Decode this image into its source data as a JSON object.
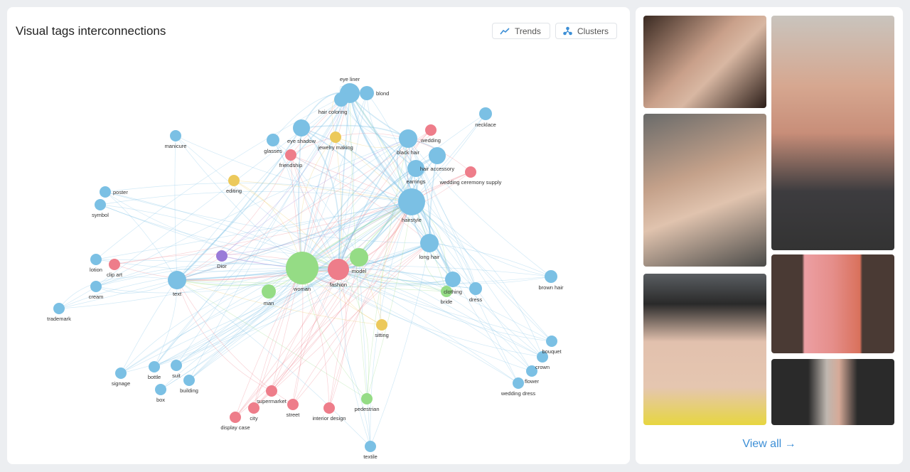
{
  "panel": {
    "title": "Visual tags interconnections"
  },
  "buttons": {
    "trends": "Trends",
    "clusters": "Clusters"
  },
  "colors": {
    "blue": "#7bc0e4",
    "red": "#ee7d8a",
    "green": "#95dc85",
    "yellow": "#ecc95b",
    "purple": "#9a7bd8",
    "link": "#3d8fd6"
  },
  "nodes": [
    {
      "label": "blond",
      "cluster": "blue"
    },
    {
      "label": "eye liner",
      "cluster": "blue"
    },
    {
      "label": "hair coloring",
      "cluster": "blue"
    },
    {
      "label": "necklace",
      "cluster": "blue"
    },
    {
      "label": "manicure",
      "cluster": "blue"
    },
    {
      "label": "glasses",
      "cluster": "blue"
    },
    {
      "label": "eye shadow",
      "cluster": "blue"
    },
    {
      "label": "jewelry making",
      "cluster": "yellow"
    },
    {
      "label": "black hair",
      "cluster": "blue"
    },
    {
      "label": "wedding",
      "cluster": "red"
    },
    {
      "label": "hair accessory",
      "cluster": "blue"
    },
    {
      "label": "friendship",
      "cluster": "red"
    },
    {
      "label": "earrings",
      "cluster": "blue"
    },
    {
      "label": "wedding ceremony supply",
      "cluster": "red"
    },
    {
      "label": "editing",
      "cluster": "yellow"
    },
    {
      "label": "hairstyle",
      "cluster": "blue"
    },
    {
      "label": "poster",
      "cluster": "blue"
    },
    {
      "label": "symbol",
      "cluster": "blue"
    },
    {
      "label": "Dior",
      "cluster": "purple"
    },
    {
      "label": "long hair",
      "cluster": "blue"
    },
    {
      "label": "lotion",
      "cluster": "blue"
    },
    {
      "label": "clip art",
      "cluster": "red"
    },
    {
      "label": "text",
      "cluster": "blue"
    },
    {
      "label": "woman",
      "cluster": "green"
    },
    {
      "label": "fashion",
      "cluster": "red"
    },
    {
      "label": "model",
      "cluster": "green"
    },
    {
      "label": "man",
      "cluster": "green"
    },
    {
      "label": "clothing",
      "cluster": "blue"
    },
    {
      "label": "bride",
      "cluster": "green"
    },
    {
      "label": "dress",
      "cluster": "blue"
    },
    {
      "label": "brown hair",
      "cluster": "blue"
    },
    {
      "label": "cream",
      "cluster": "blue"
    },
    {
      "label": "trademark",
      "cluster": "blue"
    },
    {
      "label": "sitting",
      "cluster": "yellow"
    },
    {
      "label": "bouquet",
      "cluster": "blue"
    },
    {
      "label": "crown",
      "cluster": "blue"
    },
    {
      "label": "flower",
      "cluster": "blue"
    },
    {
      "label": "wedding dress",
      "cluster": "blue"
    },
    {
      "label": "signage",
      "cluster": "blue"
    },
    {
      "label": "bottle",
      "cluster": "blue"
    },
    {
      "label": "suit",
      "cluster": "blue"
    },
    {
      "label": "building",
      "cluster": "blue"
    },
    {
      "label": "box",
      "cluster": "blue"
    },
    {
      "label": "supermarket",
      "cluster": "red"
    },
    {
      "label": "pedestrian",
      "cluster": "green"
    },
    {
      "label": "street",
      "cluster": "red"
    },
    {
      "label": "city",
      "cluster": "red"
    },
    {
      "label": "interior design",
      "cluster": "red"
    },
    {
      "label": "display case",
      "cluster": "red"
    },
    {
      "label": "textile",
      "cluster": "blue"
    }
  ],
  "gallery": {
    "view_all": "View all →"
  }
}
